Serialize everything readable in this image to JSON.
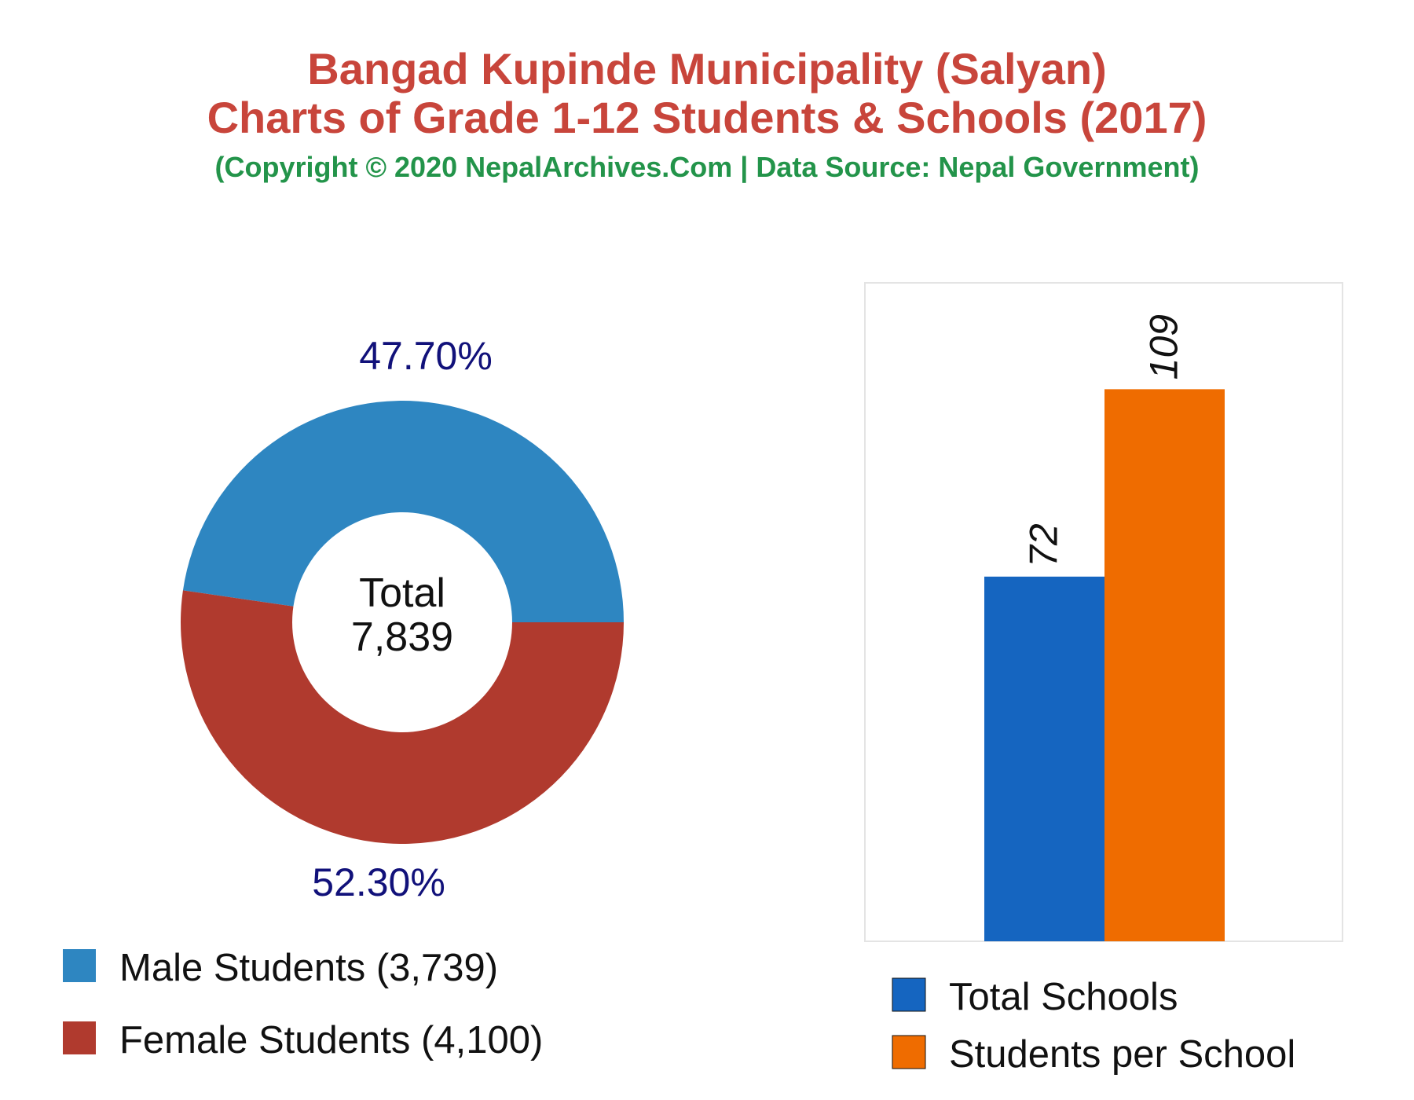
{
  "header": {
    "title_line1": "Bangad Kupinde Municipality (Salyan)",
    "title_line2": "Charts of Grade 1-12 Students & Schools (2017)",
    "subtitle": "(Copyright © 2020 NepalArchives.Com | Data Source: Nepal Government)"
  },
  "colors": {
    "title": "#c8453b",
    "subtitle": "#23944a",
    "male": "#2e86c1",
    "female": "#b03a2e",
    "schools": "#1565c0",
    "per_school": "#ef6c00",
    "percent_text": "#11117a"
  },
  "chart_data": [
    {
      "type": "pie",
      "variant": "donut",
      "center_label": "Total",
      "center_value": "7,839",
      "slices": [
        {
          "name": "Male Students",
          "value": 3739,
          "percent": 47.7,
          "percent_label": "47.70%",
          "legend": "Male Students (3,739)",
          "color": "#2e86c1"
        },
        {
          "name": "Female Students",
          "value": 4100,
          "percent": 52.3,
          "percent_label": "52.30%",
          "legend": "Female Students (4,100)",
          "color": "#b03a2e"
        }
      ],
      "legend_position": "bottom-left"
    },
    {
      "type": "bar",
      "categories": [
        "Total Schools",
        "Students per School"
      ],
      "values": [
        72,
        109
      ],
      "value_labels": [
        "72",
        "109"
      ],
      "colors": [
        "#1565c0",
        "#ef6c00"
      ],
      "legend": [
        "Total Schools",
        "Students per School"
      ],
      "ylim": [
        0,
        130
      ],
      "grid": false,
      "legend_position": "bottom"
    }
  ]
}
